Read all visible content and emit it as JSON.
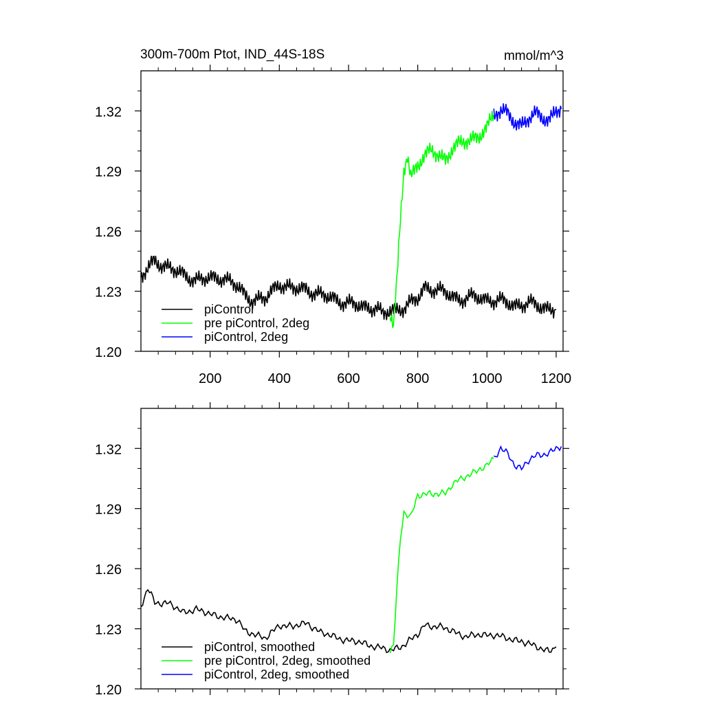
{
  "title_left": "300m-700m Ptot, IND_44S-18S",
  "title_right": "mmol/m^3",
  "colors": {
    "black": "#000000",
    "green": "#00ff00",
    "blue": "#0000ff"
  },
  "chart_data": [
    {
      "type": "line",
      "xlim": [
        0,
        1220
      ],
      "ylim": [
        1.2,
        1.34
      ],
      "x_ticks": [
        200,
        400,
        600,
        800,
        1000,
        1200
      ],
      "x_tick_labels": [
        "200",
        "400",
        "600",
        "800",
        "1000",
        "1200"
      ],
      "y_ticks": [
        1.2,
        1.23,
        1.26,
        1.29,
        1.32
      ],
      "y_tick_labels": [
        "1.20",
        "1.23",
        "1.26",
        "1.29",
        "1.32"
      ],
      "legend_position": "bottom-left",
      "series": [
        {
          "name": "piControl",
          "color": "#000000",
          "points": [
            [
              0,
              1.237
            ],
            [
              40,
              1.245
            ],
            [
              80,
              1.242
            ],
            [
              120,
              1.238
            ],
            [
              160,
              1.236
            ],
            [
              200,
              1.236
            ],
            [
              240,
              1.237
            ],
            [
              280,
              1.232
            ],
            [
              300,
              1.228
            ],
            [
              320,
              1.226
            ],
            [
              360,
              1.226
            ],
            [
              400,
              1.234
            ],
            [
              440,
              1.231
            ],
            [
              480,
              1.231
            ],
            [
              520,
              1.228
            ],
            [
              560,
              1.226
            ],
            [
              600,
              1.224
            ],
            [
              640,
              1.222
            ],
            [
              680,
              1.222
            ],
            [
              700,
              1.218
            ],
            [
              720,
              1.22
            ],
            [
              760,
              1.222
            ],
            [
              800,
              1.226
            ],
            [
              820,
              1.232
            ],
            [
              850,
              1.231
            ],
            [
              880,
              1.229
            ],
            [
              920,
              1.226
            ],
            [
              960,
              1.227
            ],
            [
              1000,
              1.226
            ],
            [
              1040,
              1.225
            ],
            [
              1080,
              1.223
            ],
            [
              1120,
              1.224
            ],
            [
              1160,
              1.222
            ],
            [
              1200,
              1.221
            ]
          ]
        },
        {
          "name": "pre piControl, 2deg",
          "color": "#00ff00",
          "points": [
            [
              720,
              1.22
            ],
            [
              730,
              1.213
            ],
            [
              740,
              1.235
            ],
            [
              750,
              1.265
            ],
            [
              760,
              1.29
            ],
            [
              770,
              1.298
            ],
            [
              780,
              1.287
            ],
            [
              800,
              1.294
            ],
            [
              840,
              1.3
            ],
            [
              880,
              1.296
            ],
            [
              900,
              1.301
            ],
            [
              940,
              1.305
            ],
            [
              980,
              1.308
            ],
            [
              1000,
              1.311
            ],
            [
              1020,
              1.318
            ]
          ]
        },
        {
          "name": "piControl, 2deg",
          "color": "#0000ff",
          "points": [
            [
              1020,
              1.318
            ],
            [
              1040,
              1.32
            ],
            [
              1060,
              1.318
            ],
            [
              1080,
              1.315
            ],
            [
              1100,
              1.313
            ],
            [
              1120,
              1.316
            ],
            [
              1140,
              1.318
            ],
            [
              1160,
              1.317
            ],
            [
              1180,
              1.316
            ],
            [
              1200,
              1.32
            ],
            [
              1215,
              1.321
            ]
          ]
        }
      ]
    },
    {
      "type": "line",
      "xlim": [
        0,
        1220
      ],
      "ylim": [
        1.2,
        1.34
      ],
      "x_ticks": [
        200,
        400,
        600,
        800,
        1000,
        1200
      ],
      "y_ticks": [
        1.2,
        1.23,
        1.26,
        1.29,
        1.32
      ],
      "y_tick_labels": [
        "1.20",
        "1.23",
        "1.26",
        "1.29",
        "1.32"
      ],
      "legend_position": "bottom-left",
      "series": [
        {
          "name": "piControl, smoothed",
          "color": "#000000",
          "points": [
            [
              0,
              1.241
            ],
            [
              20,
              1.25
            ],
            [
              40,
              1.243
            ],
            [
              80,
              1.243
            ],
            [
              120,
              1.238
            ],
            [
              160,
              1.24
            ],
            [
              200,
              1.237
            ],
            [
              240,
              1.236
            ],
            [
              280,
              1.234
            ],
            [
              300,
              1.229
            ],
            [
              320,
              1.228
            ],
            [
              360,
              1.225
            ],
            [
              400,
              1.232
            ],
            [
              440,
              1.231
            ],
            [
              480,
              1.233
            ],
            [
              520,
              1.228
            ],
            [
              560,
              1.226
            ],
            [
              600,
              1.224
            ],
            [
              640,
              1.223
            ],
            [
              680,
              1.221
            ],
            [
              700,
              1.22
            ],
            [
              720,
              1.219
            ],
            [
              760,
              1.222
            ],
            [
              800,
              1.227
            ],
            [
              820,
              1.232
            ],
            [
              860,
              1.231
            ],
            [
              900,
              1.229
            ],
            [
              940,
              1.226
            ],
            [
              980,
              1.227
            ],
            [
              1020,
              1.227
            ],
            [
              1060,
              1.225
            ],
            [
              1100,
              1.224
            ],
            [
              1140,
              1.221
            ],
            [
              1180,
              1.219
            ],
            [
              1200,
              1.221
            ]
          ]
        },
        {
          "name": "pre piControl, 2deg, smoothed",
          "color": "#00ff00",
          "points": [
            [
              720,
              1.219
            ],
            [
              730,
              1.222
            ],
            [
              740,
              1.25
            ],
            [
              750,
              1.275
            ],
            [
              760,
              1.288
            ],
            [
              780,
              1.286
            ],
            [
              800,
              1.297
            ],
            [
              840,
              1.297
            ],
            [
              880,
              1.298
            ],
            [
              900,
              1.302
            ],
            [
              940,
              1.306
            ],
            [
              980,
              1.31
            ],
            [
              1000,
              1.311
            ],
            [
              1020,
              1.315
            ]
          ]
        },
        {
          "name": "piControl, 2deg, smoothed",
          "color": "#0000ff",
          "points": [
            [
              1020,
              1.315
            ],
            [
              1040,
              1.32
            ],
            [
              1060,
              1.317
            ],
            [
              1080,
              1.312
            ],
            [
              1100,
              1.31
            ],
            [
              1120,
              1.314
            ],
            [
              1140,
              1.316
            ],
            [
              1160,
              1.317
            ],
            [
              1180,
              1.318
            ],
            [
              1200,
              1.32
            ],
            [
              1215,
              1.321
            ]
          ]
        }
      ]
    }
  ]
}
